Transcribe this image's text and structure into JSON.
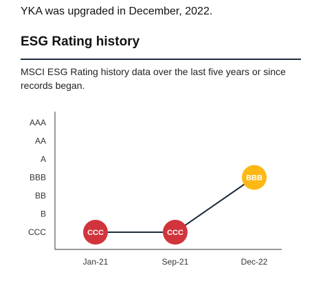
{
  "upgrade_note": "YKA was upgraded in December, 2022.",
  "section": {
    "title": "ESG Rating history",
    "description": "MSCI ESG Rating history data over the last five years or since records began."
  },
  "colors": {
    "ccc": "#d1343c",
    "bbb": "#fdb815",
    "line": "#1d2b3a",
    "axis": "#333333"
  },
  "chart_data": {
    "type": "line",
    "title": "",
    "xlabel": "",
    "ylabel": "",
    "y_categories": [
      "CCC",
      "B",
      "BB",
      "BBB",
      "A",
      "AA",
      "AAA"
    ],
    "categories": [
      "Jan-21",
      "Sep-21",
      "Dec-22"
    ],
    "series": [
      {
        "values": [
          "CCC",
          "CCC",
          "BBB"
        ]
      }
    ],
    "point_labels": [
      "CCC",
      "CCC",
      "BBB"
    ],
    "grid": false,
    "legend": "none"
  }
}
